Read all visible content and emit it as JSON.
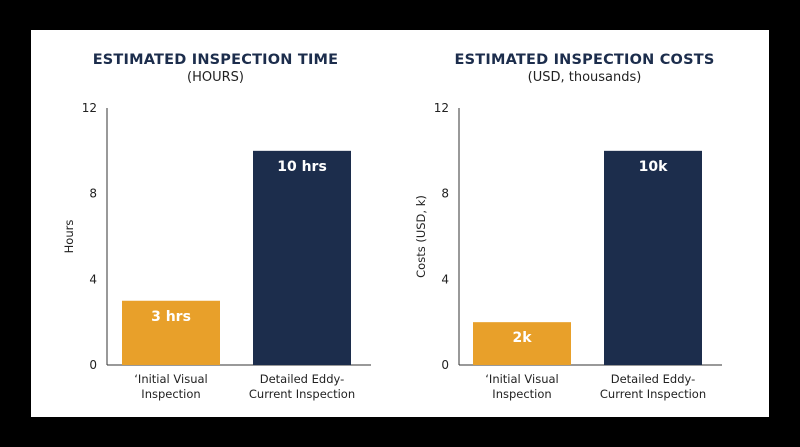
{
  "chart_data": [
    {
      "type": "bar",
      "title": "ESTIMATED INSPECTION TIME",
      "subtitle": "(HOURS)",
      "ylabel": "Hours",
      "xlabel": "",
      "ylim": [
        0,
        12
      ],
      "yticks": [
        0,
        4,
        8,
        12
      ],
      "categories": [
        "‘Initial Visual Inspection",
        "Detailed Eddy-Current Inspection"
      ],
      "category_lines": [
        [
          "‘Initial Visual",
          "Inspection"
        ],
        [
          "Detailed Eddy-",
          "Current Inspection"
        ]
      ],
      "values": [
        3,
        10
      ],
      "data_labels": [
        "3 hrs",
        "10 hrs"
      ],
      "bar_colors": [
        "#e8a02a",
        "#1c2d4c"
      ],
      "grid": false
    },
    {
      "type": "bar",
      "title": "ESTIMATED INSPECTION COSTS",
      "subtitle": "(USD, thousands)",
      "ylabel": "Costs (USD, k)",
      "xlabel": "",
      "ylim": [
        0,
        12
      ],
      "yticks": [
        0,
        4,
        8,
        12
      ],
      "categories": [
        "‘Initial Visual Inspection",
        "Detailed Eddy-Current Inspection"
      ],
      "category_lines": [
        [
          "‘Initial Visual",
          "Inspection"
        ],
        [
          "Detailed Eddy-",
          "Current Inspection"
        ]
      ],
      "values": [
        2,
        10
      ],
      "data_labels": [
        "2k",
        "10k"
      ],
      "bar_colors": [
        "#e8a02a",
        "#1c2d4c"
      ],
      "grid": false
    }
  ]
}
